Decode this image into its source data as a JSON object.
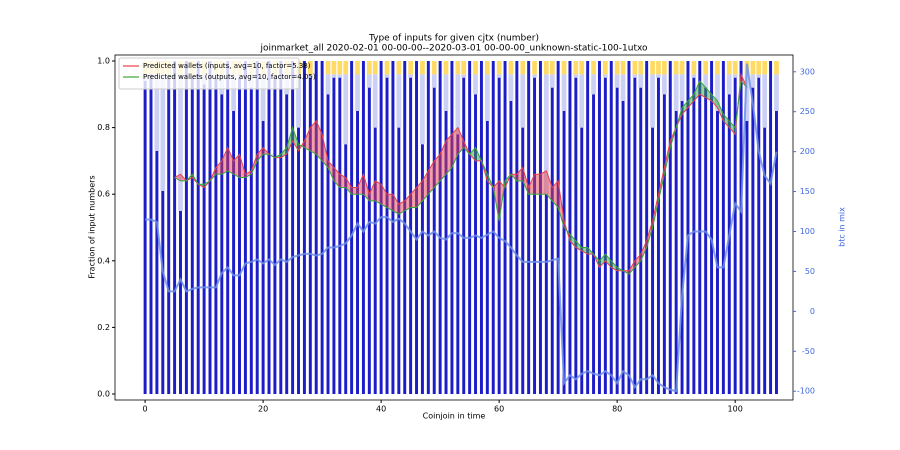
{
  "chart_data": {
    "type": "bar",
    "title": "Type of inputs for given cjtx (number)",
    "subtitle": "joinmarket_all 2020-02-01 00-00-00--2020-03-01 00-00-00_unknown-static-100-1utxo",
    "xlabel": "Coinjoin in time",
    "ylabel": "Fraction of input numbers",
    "y2label": "btc in mix",
    "y2color": "#4169e1",
    "legend": "upper left",
    "xlim": [
      -5.1,
      109.8
    ],
    "ylim": [
      -0.018,
      1.018
    ],
    "y2lim": [
      -111,
      321
    ],
    "xticks": [
      0,
      20,
      40,
      60,
      80,
      100
    ],
    "yticks": [
      {
        "value": 0,
        "label": "0.0"
      },
      0.2,
      0.4,
      0.6,
      0.8,
      {
        "value": 1,
        "label": "1.0"
      }
    ],
    "y2ticks": [
      -100,
      -50,
      0,
      50,
      100,
      150,
      200,
      250,
      300
    ],
    "x": [
      0,
      1,
      2,
      3,
      4,
      5,
      6,
      7,
      8,
      9,
      10,
      11,
      12,
      13,
      14,
      15,
      16,
      17,
      18,
      19,
      20,
      21,
      22,
      23,
      24,
      25,
      26,
      27,
      28,
      29,
      30,
      31,
      32,
      33,
      34,
      35,
      36,
      37,
      38,
      39,
      40,
      41,
      42,
      43,
      44,
      45,
      46,
      47,
      48,
      49,
      50,
      51,
      52,
      53,
      54,
      55,
      56,
      57,
      58,
      59,
      60,
      61,
      62,
      63,
      64,
      65,
      66,
      67,
      68,
      69,
      70,
      71,
      72,
      73,
      74,
      75,
      76,
      77,
      78,
      79,
      80,
      81,
      82,
      83,
      84,
      85,
      86,
      87,
      88,
      89,
      90,
      91,
      92,
      93,
      94,
      95,
      96,
      97,
      98,
      99,
      100,
      101,
      102,
      103,
      104,
      105,
      106,
      107
    ],
    "bars": [
      {
        "color": "#1c1cc8",
        "values": [
          0.94,
          0.96,
          0.73,
          0.61,
          0.95,
          1.0,
          0.55,
          1.0,
          0.95,
          1.0,
          0.93,
          1.0,
          0.95,
          0.9,
          1.0,
          0.85,
          0.95,
          1.0,
          0.92,
          1.0,
          0.82,
          1.0,
          0.95,
          1.0,
          0.9,
          1.0,
          0.8,
          1.0,
          0.95,
          1.0,
          1.0,
          0.9,
          0.95,
          0.95,
          0.75,
          1.0,
          0.85,
          1.0,
          0.92,
          0.8,
          1.0,
          0.95,
          1.0,
          0.8,
          1.0,
          0.95,
          1.0,
          0.75,
          1.0,
          0.92,
          1.0,
          0.85,
          1.0,
          0.78,
          0.95,
          1.0,
          0.9,
          1.0,
          0.82,
          1.0,
          0.95,
          1.0,
          0.88,
          1.0,
          0.8,
          1.0,
          0.95,
          1.0,
          0.6,
          0.92,
          1.0,
          0.85,
          1.0,
          0.95,
          0.8,
          1.0,
          0.9,
          1.0,
          0.95,
          1.0,
          0.92,
          0.88,
          1.0,
          0.95,
          0.92,
          1.0,
          0.8,
          0.95,
          0.9,
          1.0,
          0.85,
          0.88,
          1.0,
          0.95,
          1.0,
          0.92,
          1.0,
          0.85,
          1.0,
          0.9,
          0.95,
          1.0,
          0.82,
          0.92,
          0.95,
          0.8,
          1.0,
          0.85
        ]
      },
      {
        "color": "#c3c8f2",
        "values": [
          0.02,
          0,
          0.23,
          0.35,
          0.01,
          0,
          0.41,
          0,
          0.01,
          0,
          0.03,
          0,
          0.01,
          0.06,
          0,
          0.11,
          0.01,
          0,
          0.04,
          0,
          0.14,
          0,
          0.01,
          0,
          0.06,
          0,
          0.16,
          0,
          0.01,
          0,
          0,
          0.06,
          0.01,
          0.01,
          0.21,
          0,
          0.11,
          0,
          0.04,
          0.16,
          0,
          0.01,
          0,
          0.16,
          0,
          0.01,
          0,
          0.21,
          0,
          0.04,
          0,
          0.11,
          0,
          0.18,
          0.01,
          0,
          0.06,
          0,
          0.14,
          0,
          0.01,
          0,
          0.08,
          0,
          0.16,
          0,
          0.01,
          0,
          0.36,
          0.04,
          0,
          0.11,
          0,
          0.01,
          0.16,
          0,
          0.06,
          0,
          0.01,
          0,
          0.04,
          0.08,
          0,
          0.01,
          0.04,
          0,
          0.16,
          0.01,
          0.06,
          0,
          0.11,
          0.08,
          0,
          0.01,
          0,
          0.04,
          0,
          0.11,
          0,
          0.06,
          0.01,
          0,
          0.14,
          0.04,
          0.01,
          0.16,
          0,
          0.11
        ]
      },
      {
        "color": "#ffd54a",
        "values": [
          0.04,
          0.04,
          0.04,
          0.04,
          0.04,
          0,
          0.04,
          0,
          0.04,
          0,
          0.04,
          0,
          0.04,
          0.04,
          0,
          0.04,
          0.04,
          0,
          0.04,
          0,
          0.04,
          0,
          0.04,
          0,
          0.04,
          0,
          0.04,
          0,
          0.04,
          0,
          0,
          0.04,
          0.04,
          0.04,
          0.04,
          0,
          0.04,
          0,
          0.04,
          0.04,
          0,
          0.04,
          0,
          0.04,
          0,
          0.04,
          0,
          0.04,
          0,
          0.04,
          0,
          0.04,
          0,
          0.04,
          0.04,
          0,
          0.04,
          0,
          0.04,
          0,
          0.04,
          0,
          0.04,
          0,
          0.04,
          0,
          0.04,
          0,
          0.04,
          0.04,
          0,
          0.04,
          0,
          0.04,
          0.04,
          0,
          0.04,
          0,
          0.04,
          0,
          0.04,
          0.04,
          0,
          0.04,
          0.04,
          0,
          0.04,
          0.04,
          0.04,
          0,
          0.04,
          0.04,
          0,
          0.04,
          0,
          0.04,
          0,
          0.04,
          0,
          0.04,
          0.04,
          0,
          0.04,
          0.04,
          0.04,
          0.04,
          0,
          0.04
        ]
      }
    ],
    "series": [
      {
        "name": "Predicted wallets (inputs, avg=10, factor=5.38)",
        "color": "#e8404a",
        "values": [
          null,
          null,
          null,
          null,
          null,
          0.65,
          0.66,
          0.64,
          0.65,
          0.63,
          0.62,
          0.64,
          0.68,
          0.7,
          0.74,
          0.7,
          0.72,
          0.66,
          0.67,
          0.72,
          0.74,
          0.72,
          0.71,
          0.71,
          0.72,
          0.76,
          0.73,
          0.76,
          0.8,
          0.82,
          0.78,
          0.7,
          0.68,
          0.66,
          0.65,
          0.62,
          0.62,
          0.66,
          0.6,
          0.64,
          0.63,
          0.6,
          0.6,
          0.57,
          0.58,
          0.6,
          0.62,
          0.64,
          0.67,
          0.7,
          0.72,
          0.76,
          0.78,
          0.8,
          0.76,
          0.72,
          0.7,
          0.7,
          0.64,
          0.62,
          0.64,
          0.62,
          0.66,
          0.66,
          0.68,
          0.62,
          0.66,
          0.66,
          0.67,
          0.62,
          0.64,
          0.52,
          0.46,
          0.44,
          0.43,
          0.42,
          0.42,
          0.38,
          0.4,
          0.38,
          0.37,
          0.37,
          0.37,
          0.4,
          0.42,
          0.46,
          0.52,
          0.6,
          0.68,
          0.76,
          0.8,
          0.84,
          0.86,
          0.88,
          0.9,
          0.89,
          0.88,
          0.86,
          0.82,
          0.8,
          0.78,
          0.96,
          0.92,
          null,
          null,
          null,
          null,
          null
        ]
      },
      {
        "name": "Predicted wallets (outputs, avg=10, factor=4.05)",
        "color": "#3aa53a",
        "values": [
          null,
          null,
          null,
          null,
          null,
          0.65,
          0.64,
          0.64,
          0.66,
          0.63,
          0.63,
          0.64,
          0.66,
          0.66,
          0.67,
          0.66,
          0.65,
          0.65,
          0.66,
          0.7,
          0.72,
          0.72,
          0.71,
          0.72,
          0.74,
          0.8,
          0.75,
          0.74,
          0.73,
          0.72,
          0.7,
          0.68,
          0.64,
          0.62,
          0.62,
          0.6,
          0.6,
          0.6,
          0.58,
          0.58,
          0.57,
          0.56,
          0.55,
          0.54,
          0.55,
          0.56,
          0.56,
          0.58,
          0.6,
          0.62,
          0.64,
          0.66,
          0.68,
          0.72,
          0.74,
          0.72,
          0.74,
          0.7,
          0.66,
          0.62,
          0.52,
          0.64,
          0.66,
          0.64,
          0.64,
          0.6,
          0.6,
          0.6,
          0.6,
          0.58,
          0.56,
          0.5,
          0.48,
          0.46,
          0.44,
          0.44,
          0.42,
          0.4,
          0.42,
          0.4,
          0.38,
          0.37,
          0.36,
          0.38,
          0.4,
          0.44,
          0.5,
          0.58,
          0.66,
          0.74,
          0.8,
          0.86,
          0.88,
          0.9,
          0.94,
          0.92,
          0.9,
          0.88,
          0.84,
          0.82,
          0.8,
          0.94,
          0.92,
          null,
          null,
          null,
          null,
          null
        ]
      },
      {
        "color": "#6f8fe8",
        "axis": "y2",
        "values": [
          115,
          115,
          112,
          50,
          25,
          25,
          40,
          25,
          28,
          30,
          30,
          30,
          30,
          48,
          55,
          45,
          45,
          60,
          62,
          65,
          60,
          65,
          58,
          65,
          62,
          68,
          70,
          72,
          72,
          70,
          72,
          80,
          80,
          82,
          85,
          95,
          110,
          100,
          112,
          110,
          118,
          118,
          112,
          116,
          110,
          100,
          90,
          100,
          95,
          100,
          92,
          90,
          98,
          98,
          92,
          92,
          95,
          92,
          96,
          100,
          92,
          88,
          80,
          70,
          62,
          62,
          62,
          62,
          62,
          64,
          66,
          -90,
          -80,
          -85,
          -78,
          -75,
          -78,
          -80,
          -75,
          -80,
          -90,
          -75,
          -80,
          -95,
          -85,
          -85,
          -80,
          -90,
          -95,
          -98,
          -100,
          20,
          95,
          100,
          100,
          100,
          90,
          55,
          55,
          95,
          135,
          125,
          310,
          260,
          200,
          170,
          160,
          200
        ]
      }
    ]
  }
}
